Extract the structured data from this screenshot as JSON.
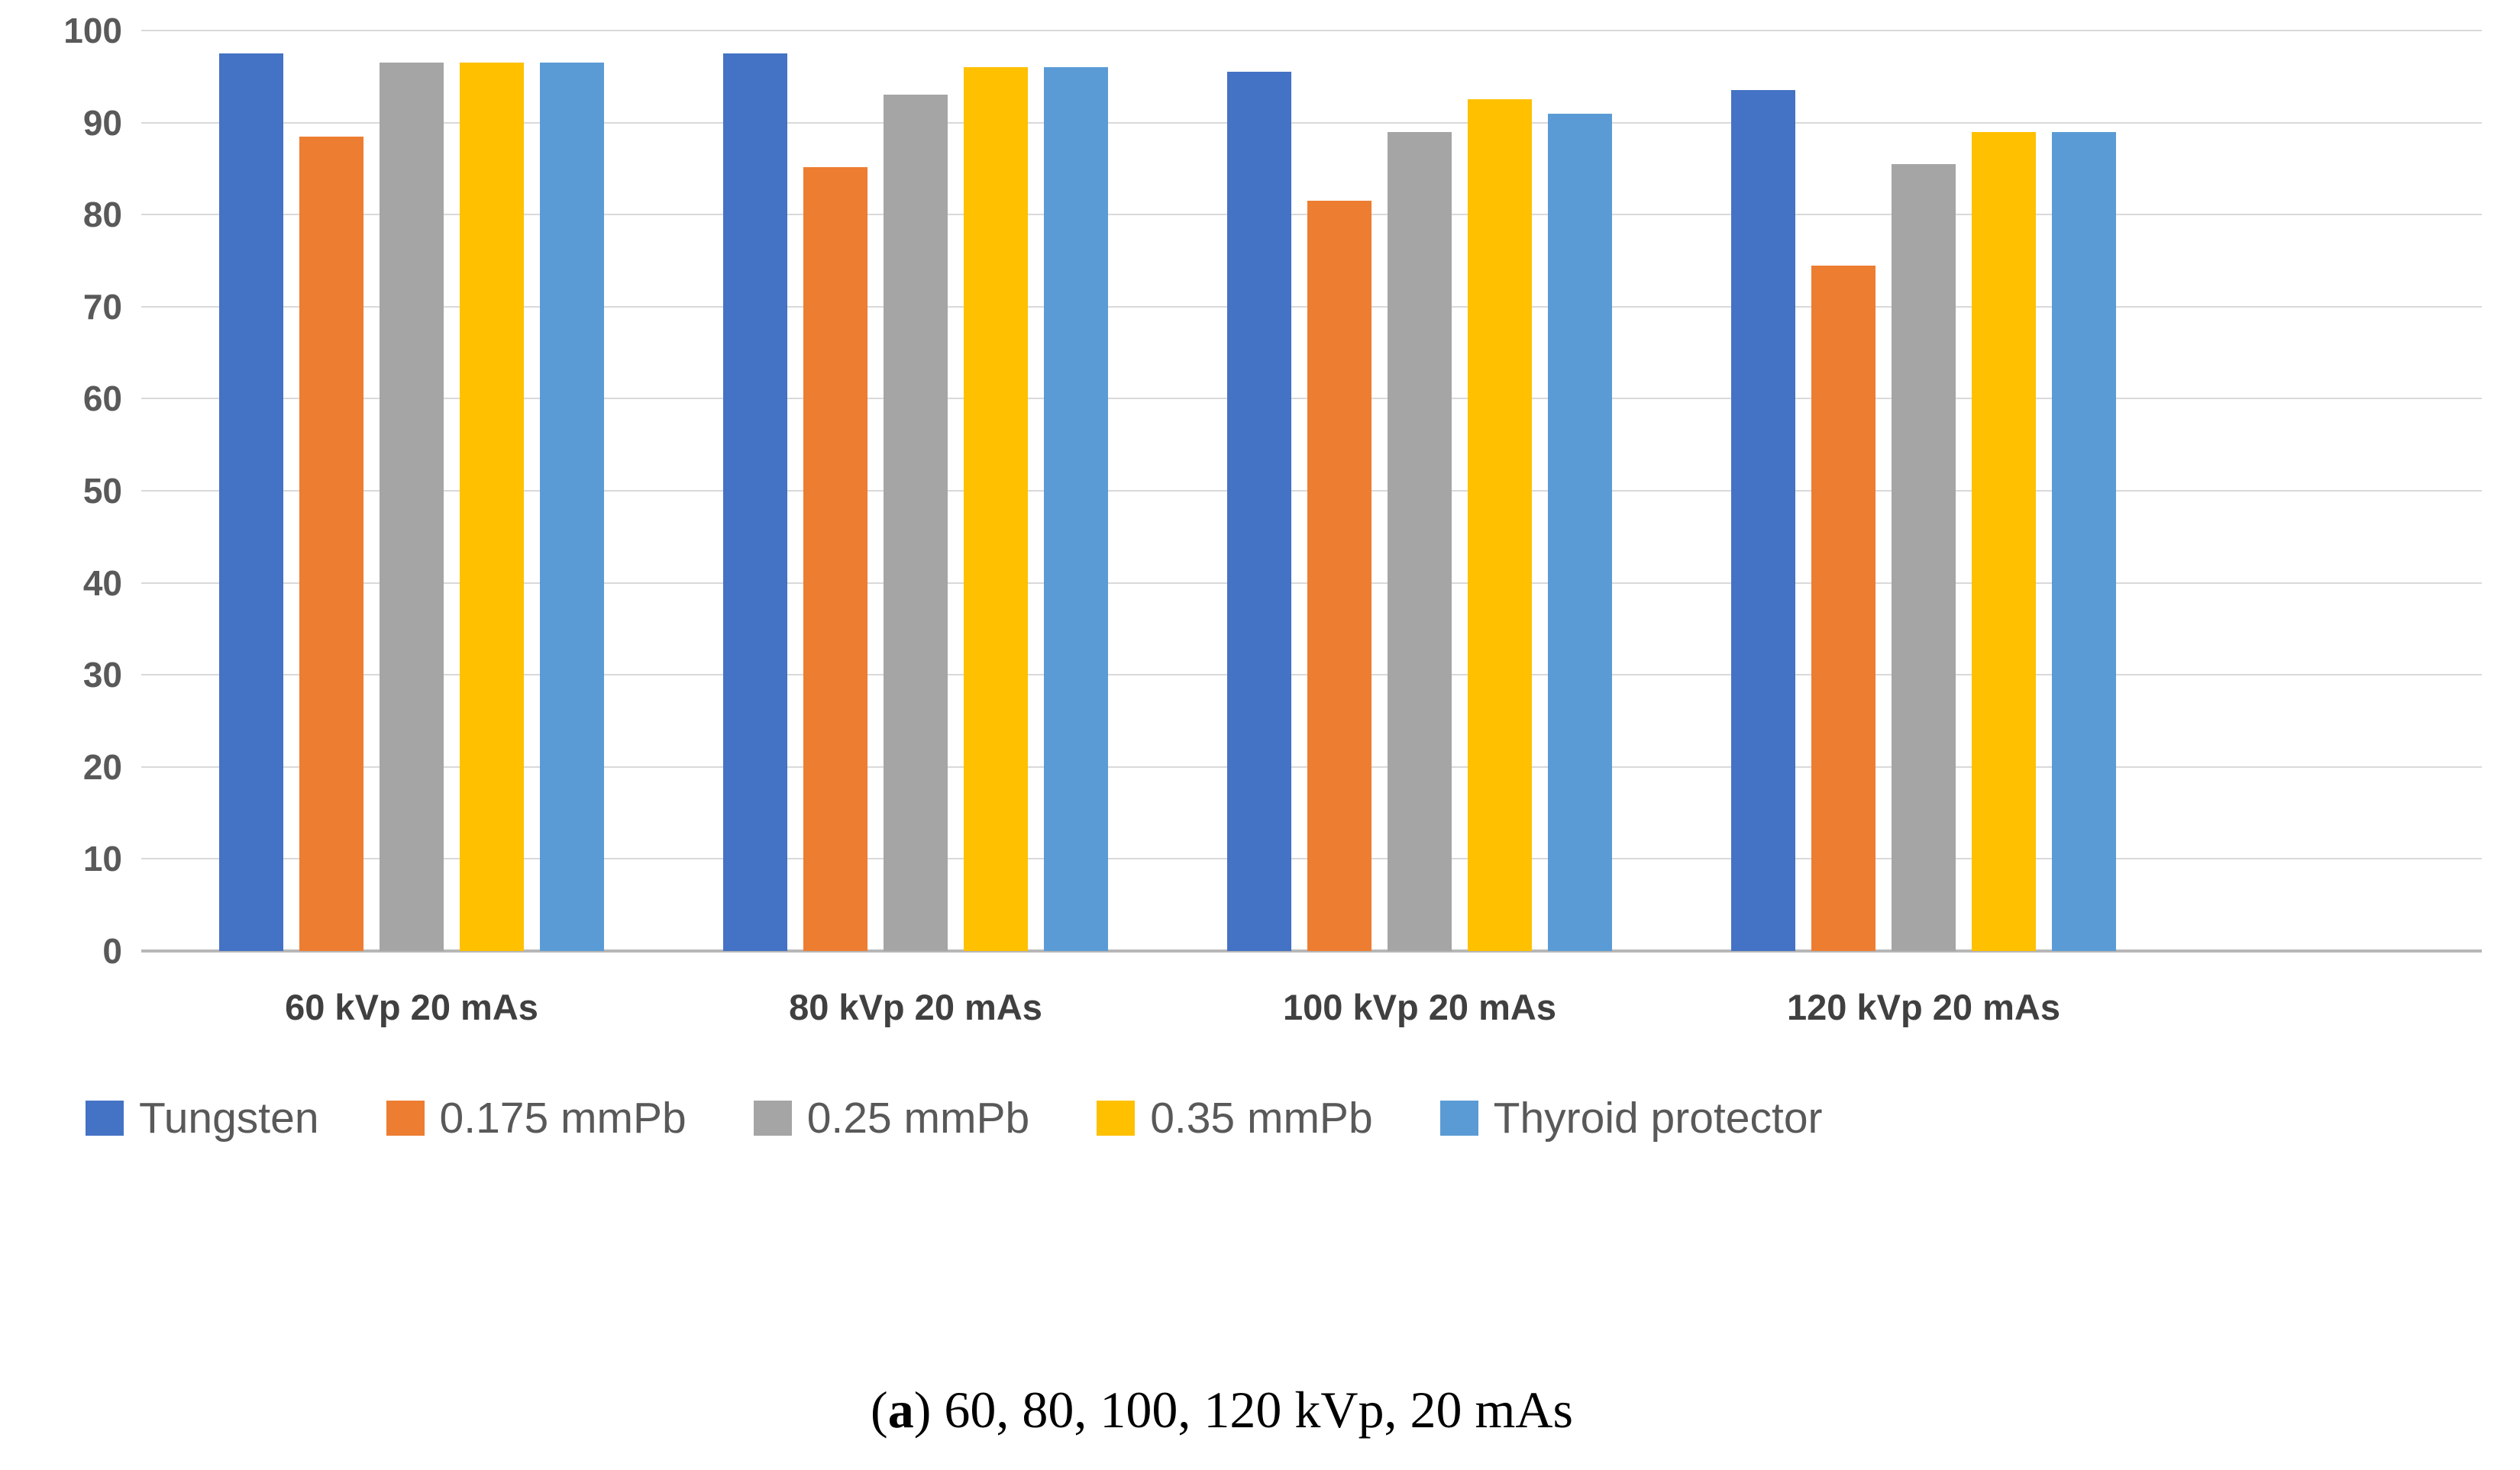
{
  "chart_data": {
    "type": "bar",
    "title": "",
    "xlabel": "",
    "ylabel": "",
    "categories": [
      "60 kVp 20 mAs",
      "80 kVp 20 mAs",
      "100 kVp 20 mAs",
      "120 kVp 20 mAs"
    ],
    "series": [
      {
        "name": "Tungsten",
        "color": "#4472C4",
        "values": [
          97.5,
          97.5,
          95.5,
          93.5
        ]
      },
      {
        "name": "0.175 mmPb",
        "color": "#ED7D31",
        "values": [
          88.5,
          85.2,
          81.5,
          74.5
        ]
      },
      {
        "name": "0.25 mmPb",
        "color": "#A5A5A5",
        "values": [
          96.5,
          93.0,
          89.0,
          85.5
        ]
      },
      {
        "name": "0.35 mmPb",
        "color": "#FFC000",
        "values": [
          96.5,
          96.0,
          92.5,
          89.0
        ]
      },
      {
        "name": "Thyroid protector",
        "color": "#5B9BD5",
        "values": [
          96.5,
          96.0,
          91.0,
          89.0
        ]
      }
    ],
    "ylim": [
      0,
      100
    ],
    "yticks": [
      0,
      10,
      20,
      30,
      40,
      50,
      60,
      70,
      80,
      90,
      100
    ],
    "grid": true,
    "gridline_color": "#D9D9D9",
    "axis_line_color": "#B7B7B7",
    "tick_label_color": "#595959",
    "category_label_color": "#404040",
    "legend_position": "bottom"
  },
  "caption": {
    "marker_open": "(",
    "marker_letter": "a",
    "marker_close": ")",
    "text": " 60, 80, 100, 120 kVp, 20 mAs"
  }
}
